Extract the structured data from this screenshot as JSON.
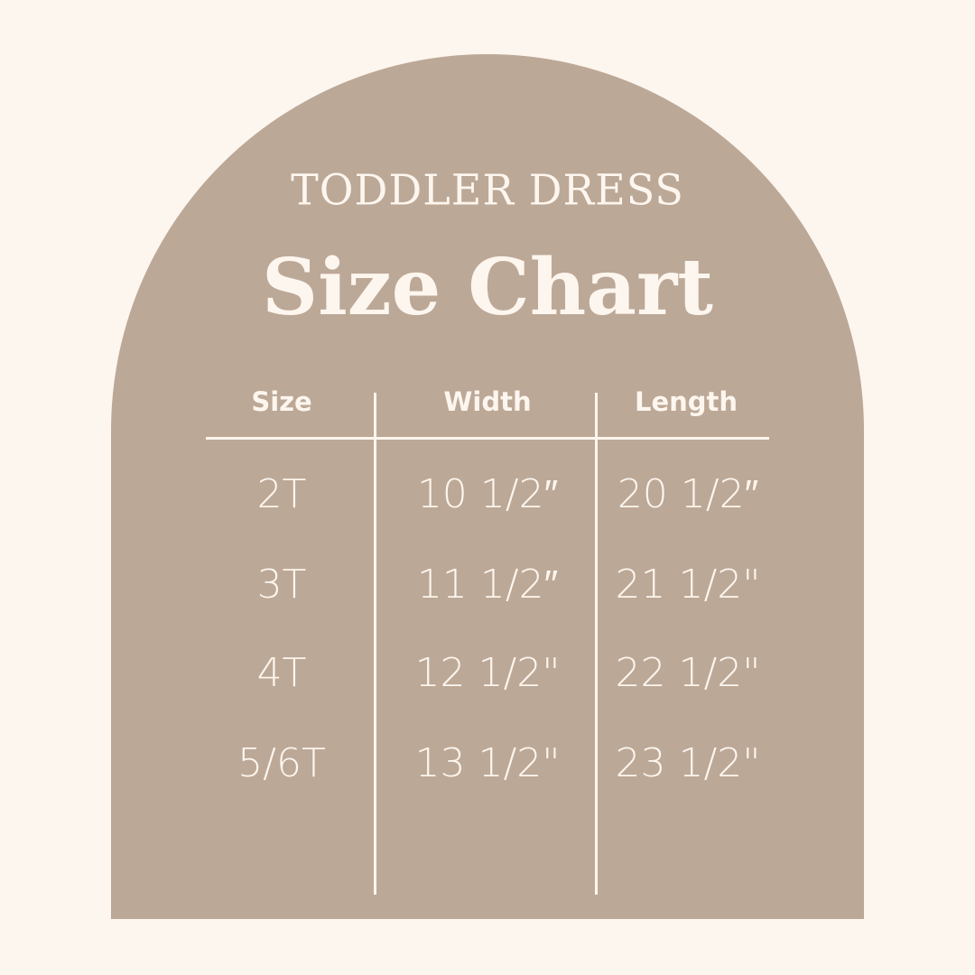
{
  "colors": {
    "background": "#fdf6ef",
    "arch": "#bca897",
    "text": "#fdf6ee"
  },
  "eyebrow": "TODDLER DRESS",
  "title": "Size Chart",
  "table": {
    "headers": [
      "Size",
      "Width",
      "Length"
    ],
    "rows": [
      [
        "2T",
        "10 1/2″",
        "20 1/2″"
      ],
      [
        "3T",
        "11 1/2″",
        "21 1/2\""
      ],
      [
        "4T",
        "12 1/2\"",
        "22 1/2\""
      ],
      [
        "5/6T",
        "13 1/2\"",
        "23 1/2\""
      ]
    ]
  }
}
